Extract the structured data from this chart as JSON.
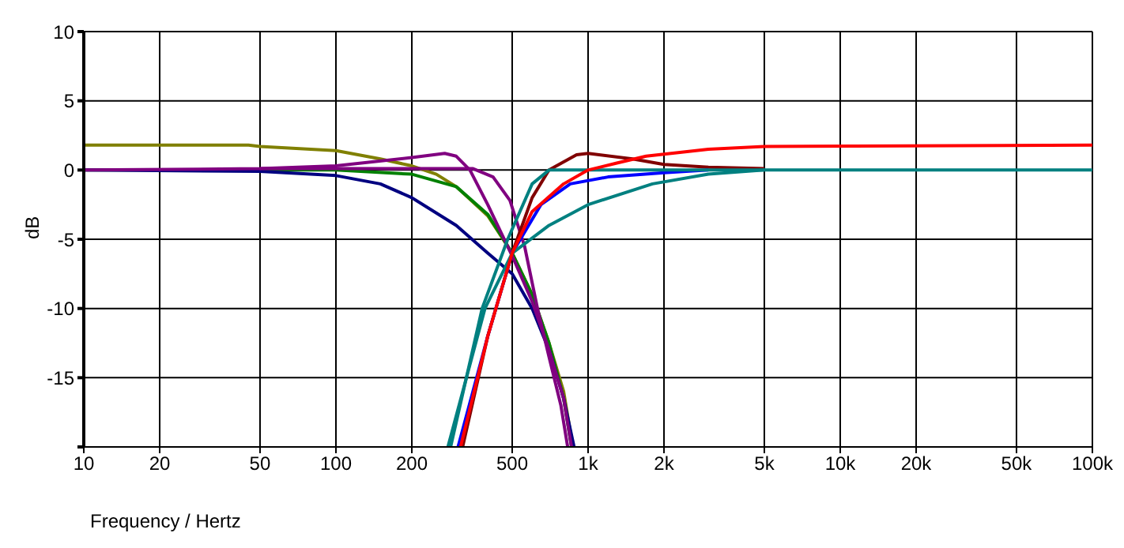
{
  "chart_data": {
    "type": "line",
    "xlabel": "Frequency / Hertz",
    "ylabel": "dB",
    "log": "x",
    "grid": true,
    "line_style": "solid",
    "marker": "none",
    "xlim": [
      10,
      100000
    ],
    "xticks": [
      10,
      20,
      50,
      100,
      200,
      500,
      {
        "value": 1000,
        "label": "1k"
      },
      {
        "value": 2000,
        "label": "2k"
      },
      {
        "value": 5000,
        "label": "5k"
      },
      {
        "value": 10000,
        "label": "10k"
      },
      {
        "value": 20000,
        "label": "20k"
      },
      {
        "value": 50000,
        "label": "50k"
      },
      {
        "value": 100000,
        "label": "100k"
      }
    ],
    "ylim": [
      -20,
      10
    ],
    "yticks": [
      {
        "value": -20,
        "label": null
      },
      -15,
      -10,
      -5,
      0,
      5,
      10
    ],
    "series": [
      {
        "color": "#808000",
        "x": [
          10,
          45,
          50,
          100,
          150,
          200,
          250,
          300,
          400,
          500,
          600,
          700,
          800,
          870
        ],
        "values": [
          1.8,
          1.8,
          1.7,
          1.4,
          0.8,
          0.3,
          -0.3,
          -1.2,
          -3.3,
          -6,
          -9,
          -12.5,
          -16,
          -20
        ]
      },
      {
        "color": "#008000",
        "x": [
          10,
          100,
          200,
          300,
          400,
          500,
          600,
          700,
          800,
          860
        ],
        "values": [
          0,
          0,
          -0.3,
          -1.2,
          -3.2,
          -6,
          -9,
          -12.5,
          -16.5,
          -20
        ]
      },
      {
        "color": "#000080",
        "x": [
          10,
          50,
          100,
          150,
          200,
          300,
          400,
          500,
          600,
          700,
          800,
          880
        ],
        "values": [
          0,
          -0.1,
          -0.4,
          -1,
          -2,
          -4,
          -6,
          -7.5,
          -10,
          -13,
          -16.5,
          -20
        ]
      },
      {
        "color": "#800080",
        "x": [
          10,
          50,
          100,
          200,
          270,
          300,
          340,
          400,
          500,
          600,
          700,
          800,
          860
        ],
        "values": [
          0,
          0.1,
          0.3,
          0.9,
          1.2,
          1,
          0,
          -2.5,
          -6.2,
          -9.5,
          -13,
          -16.5,
          -20
        ]
      },
      {
        "color": "#800080",
        "x": [
          50,
          100,
          200,
          350,
          420,
          490,
          560,
          630,
          700,
          780,
          830
        ],
        "values": [
          0.1,
          0.1,
          0.1,
          0.1,
          -0.5,
          -2.2,
          -5.5,
          -10,
          -13.5,
          -17,
          -20
        ]
      },
      {
        "color": "#800000",
        "x": [
          318,
          400,
          500,
          600,
          700,
          900,
          1000,
          1500,
          2000,
          3000,
          5000
        ],
        "values": [
          -20,
          -12,
          -6,
          -2,
          0,
          1.1,
          1.2,
          0.8,
          0.4,
          0.2,
          0.1
        ]
      },
      {
        "color": "#0000ff",
        "x": [
          305,
          400,
          500,
          650,
          850,
          1200,
          2000,
          3000
        ],
        "values": [
          -20,
          -12,
          -6,
          -2.5,
          -1,
          -0.5,
          -0.2,
          0
        ]
      },
      {
        "color": "#008080",
        "x": [
          285,
          380,
          480,
          600,
          700,
          1000,
          100000
        ],
        "values": [
          -20,
          -10,
          -5,
          -1,
          0,
          0,
          0
        ]
      },
      {
        "color": "#008080",
        "x": [
          278,
          390,
          500,
          700,
          1000,
          1800,
          3000,
          5000
        ],
        "values": [
          -20,
          -10,
          -6,
          -4,
          -2.5,
          -1,
          -0.3,
          0
        ]
      },
      {
        "color": "#ff0000",
        "x": [
          312,
          400,
          500,
          600,
          800,
          1000,
          1300,
          1700,
          3000,
          5000,
          100000
        ],
        "values": [
          -20,
          -12,
          -6,
          -3,
          -1,
          0,
          0.5,
          1,
          1.5,
          1.7,
          1.8
        ]
      }
    ]
  }
}
